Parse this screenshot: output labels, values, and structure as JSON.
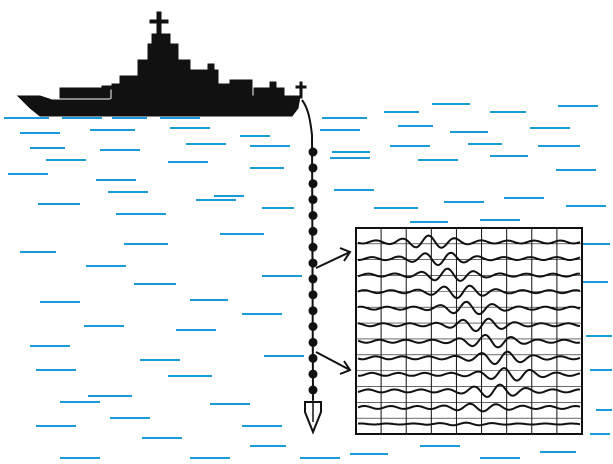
{
  "colors": {
    "water_lines": "#1a9ad6",
    "ink": "#111111",
    "background": "#ffffff"
  },
  "scene": {
    "ship": "warship-silhouette-icon",
    "cable_sensor_count": 16,
    "sensor_arrows": 2,
    "seismogram": {
      "trace_count": 12,
      "grid_columns": 9
    }
  }
}
